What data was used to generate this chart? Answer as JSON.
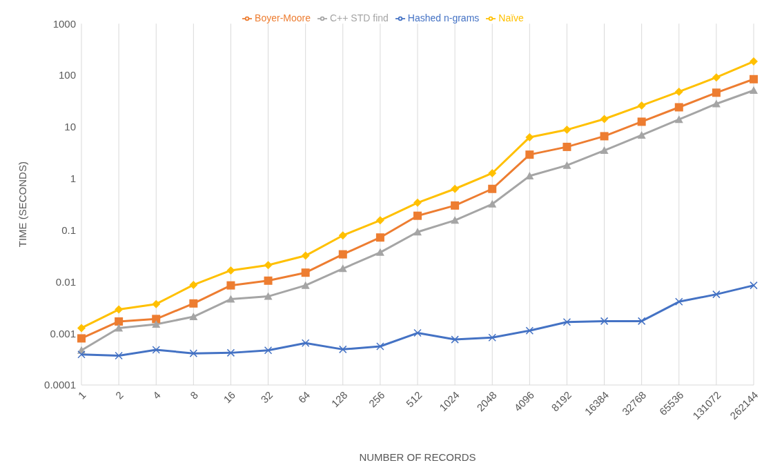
{
  "chart_data": {
    "type": "line",
    "xlabel": "NUMBER OF RECORDS",
    "ylabel": "TIME (SECONDS)",
    "categories": [
      "1",
      "2",
      "4",
      "8",
      "16",
      "32",
      "64",
      "128",
      "256",
      "512",
      "1024",
      "2048",
      "4096",
      "8192",
      "16384",
      "32768",
      "65536",
      "131072",
      "262144"
    ],
    "series": [
      {
        "name": "Naïve",
        "color": "#ffc000",
        "marker": "diamond",
        "values": [
          0.00127,
          0.0029,
          0.0037,
          0.0087,
          0.0166,
          0.021,
          0.032,
          0.079,
          0.155,
          0.34,
          0.63,
          1.27,
          6.3,
          8.8,
          14.2,
          26,
          48,
          91,
          185
        ]
      },
      {
        "name": "Boyer-Moore",
        "color": "#ed7d31",
        "marker": "square",
        "values": [
          0.0008,
          0.0017,
          0.0019,
          0.0038,
          0.0085,
          0.0105,
          0.015,
          0.034,
          0.072,
          0.19,
          0.3,
          0.63,
          2.9,
          4.1,
          6.6,
          12.6,
          24,
          46,
          84
        ]
      },
      {
        "name": "C++ STD find",
        "color": "#a5a5a5",
        "marker": "triangle",
        "values": [
          0.00047,
          0.00127,
          0.0015,
          0.0021,
          0.0046,
          0.0052,
          0.0085,
          0.018,
          0.037,
          0.092,
          0.155,
          0.32,
          1.12,
          1.8,
          3.5,
          6.9,
          13.9,
          28,
          51
        ]
      },
      {
        "name": "Hashed n-grams",
        "color": "#4472c4",
        "marker": "cross",
        "values": [
          0.00039,
          0.00037,
          0.00048,
          0.00041,
          0.00042,
          0.00047,
          0.00065,
          0.00049,
          0.00056,
          0.00102,
          0.00076,
          0.00083,
          0.00113,
          0.00166,
          0.00173,
          0.00173,
          0.0041,
          0.0057,
          0.0085
        ]
      }
    ],
    "log": "y",
    "ylim": [
      0.0001,
      1000
    ],
    "yticks": [
      0.0001,
      0.001,
      0.01,
      0.1,
      1,
      10,
      100,
      1000
    ],
    "grid": "x",
    "legend": "top",
    "line_style": "solid"
  }
}
